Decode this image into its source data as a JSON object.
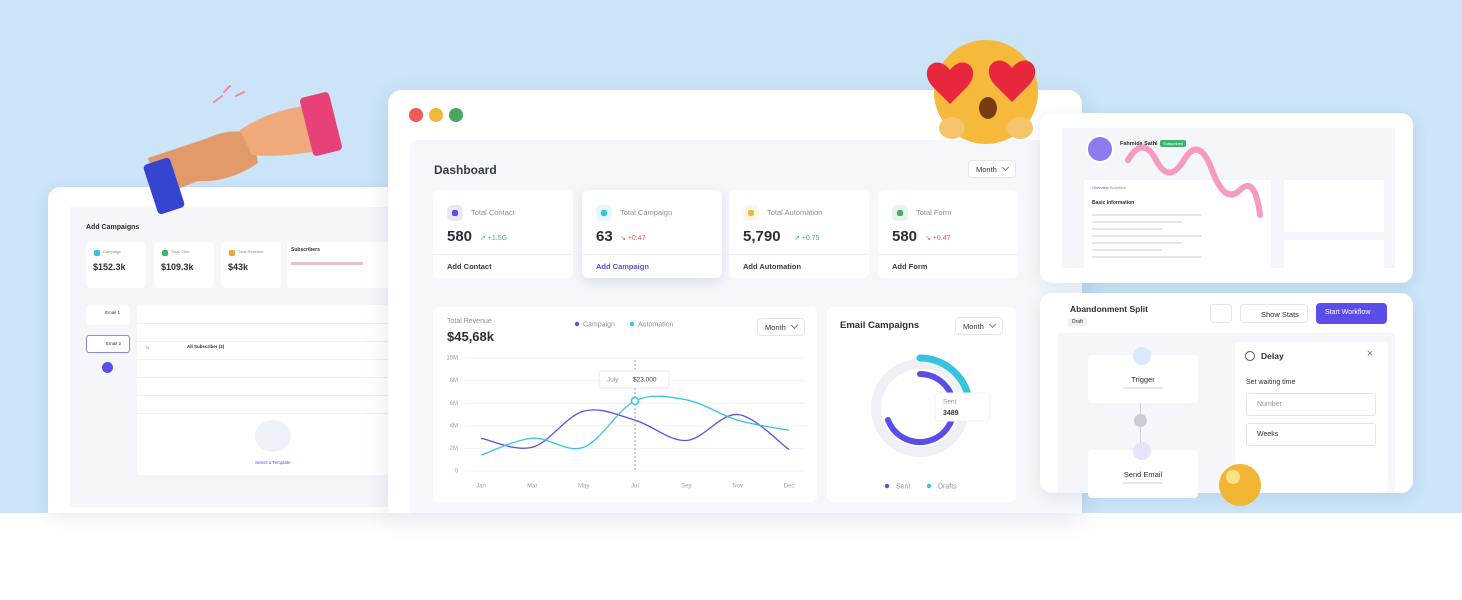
{
  "left_panel": {
    "title": "Add Campaigns",
    "stats": [
      {
        "label": "Campaign",
        "value": "$152.3k"
      },
      {
        "label": "Total Click",
        "value": "$109.3k"
      },
      {
        "label": "Total Revenue",
        "value": "$43k"
      }
    ],
    "subscribers": "Subscribers",
    "emails": [
      "Email 1",
      "Email 2"
    ],
    "to_label": "To",
    "to_value": "All Subscriber (2)",
    "template": "Select a Template"
  },
  "dashboard": {
    "title": "Dashboard",
    "period": "Month",
    "cards": [
      {
        "label": "Total Contact",
        "value": "580",
        "change": "↗ +1.5G",
        "action": "Add Contact"
      },
      {
        "label": "Total Campaign",
        "value": "63",
        "change": "↘ +0.47",
        "action": "Add Campaign"
      },
      {
        "label": "Total Automation",
        "value": "5,790",
        "change": "↗ +0.75",
        "action": "Add Automation"
      },
      {
        "label": "Total Form",
        "value": "580",
        "change": "↘ +0.47",
        "action": "Add Form"
      }
    ],
    "revenue": {
      "label": "Total Revenue",
      "total": "$45,68k",
      "period": "Month",
      "tooltip_label": "July",
      "tooltip_value": "$23,000",
      "chart": {
        "type": "line",
        "categories": [
          "Jan",
          "Mar",
          "May",
          "Jul",
          "Sep",
          "Nov",
          "Dec"
        ],
        "series": [
          {
            "name": "Campaign",
            "color": "#5b4ee8",
            "values": [
              2900000,
              2100000,
              5300000,
              4500000,
              2700000,
              5000000,
              1900000
            ]
          },
          {
            "name": "Automation",
            "color": "#35c4e0",
            "values": [
              1400000,
              2900000,
              2100000,
              6200000,
              6300000,
              4500000,
              3600000
            ]
          }
        ],
        "ylim": [
          0,
          10000000
        ],
        "yticks": [
          0,
          {
            "value": 2000000,
            "label": "2M"
          },
          {
            "value": 4000000,
            "label": "4M"
          },
          {
            "value": 6000000,
            "label": "6M"
          },
          {
            "value": 8000000,
            "label": "8M"
          },
          {
            "value": 10000000,
            "label": "10M"
          }
        ],
        "grid": true
      }
    },
    "email_campaigns": {
      "title": "Email Campaigns",
      "period": "Month",
      "center_label": "Sent",
      "center_value": "3489",
      "legend": [
        "Sent",
        "Drafts"
      ]
    }
  },
  "profile": {
    "name": "Fahmida Sathi",
    "badge": "Subscribed",
    "tabs": [
      "Overview",
      "Activities"
    ],
    "section": "Basic Information"
  },
  "workflow": {
    "title": "Abandonment Split",
    "status": "Draft",
    "show_stats": "Show Stats",
    "start": "Start Workflow",
    "trigger": "Trigger",
    "send_email": "Send Email",
    "delay": "Delay",
    "wait_label": "Set waiting time",
    "number_placeholder": "Number",
    "unit": "Weeks"
  }
}
